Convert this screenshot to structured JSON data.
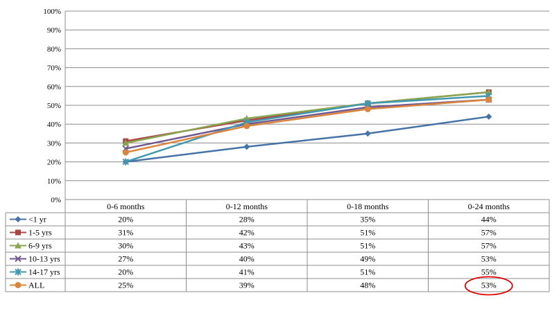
{
  "chart_data": {
    "type": "line",
    "title": "",
    "xlabel": "",
    "ylabel": "",
    "ylim": [
      0,
      100
    ],
    "yticks": [
      "0%",
      "10%",
      "20%",
      "30%",
      "40%",
      "50%",
      "60%",
      "70%",
      "80%",
      "90%",
      "100%"
    ],
    "grid": true,
    "legend": "data-table",
    "categories": [
      "0-6 months",
      "0-12 months",
      "0-18 months",
      "0-24 months"
    ],
    "series": [
      {
        "name": "<1 yr",
        "color": "#4572A7",
        "marker": "diamond",
        "values": [
          20,
          28,
          35,
          44
        ],
        "labels": [
          "20%",
          "28%",
          "35%",
          "44%"
        ]
      },
      {
        "name": "1-5 yrs",
        "color": "#AA4643",
        "marker": "square",
        "values": [
          31,
          42,
          51,
          57
        ],
        "labels": [
          "31%",
          "42%",
          "51%",
          "57%"
        ]
      },
      {
        "name": "6-9 yrs",
        "color": "#89A54E",
        "marker": "triangle",
        "values": [
          30,
          43,
          51,
          57
        ],
        "labels": [
          "30%",
          "43%",
          "51%",
          "57%"
        ]
      },
      {
        "name": "10-13 yrs",
        "color": "#71588F",
        "marker": "x",
        "values": [
          27,
          40,
          49,
          53
        ],
        "labels": [
          "27%",
          "40%",
          "49%",
          "53%"
        ]
      },
      {
        "name": "14-17 yrs",
        "color": "#4198AF",
        "marker": "star",
        "values": [
          20,
          41,
          51,
          55
        ],
        "labels": [
          "20%",
          "41%",
          "51%",
          "55%"
        ]
      },
      {
        "name": "ALL",
        "color": "#DB843D",
        "marker": "circle",
        "values": [
          25,
          39,
          48,
          53
        ],
        "labels": [
          "25%",
          "39%",
          "48%",
          "53%"
        ]
      }
    ],
    "annotation": {
      "series": 5,
      "category": 3,
      "shape": "ellipse",
      "color": "#E00000"
    }
  }
}
